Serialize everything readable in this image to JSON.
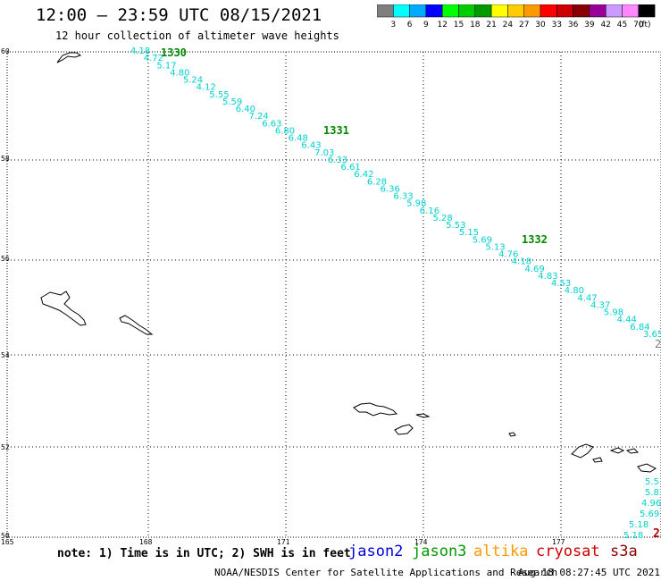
{
  "header": {
    "title": "12:00 – 23:59 UTC 08/15/2021",
    "subtitle": "12 hour collection of altimeter wave heights"
  },
  "colorbar": {
    "labels": [
      "3",
      "6",
      "9",
      "12",
      "15",
      "18",
      "21",
      "24",
      "27",
      "30",
      "33",
      "36",
      "39",
      "42",
      "45",
      "70"
    ],
    "unit": "(ft)",
    "colors": [
      "#7f7f7f",
      "#00ffff",
      "#00aaff",
      "#0000ff",
      "#00ff00",
      "#00cc00",
      "#009900",
      "#ffff00",
      "#ffcc00",
      "#ff9900",
      "#ff0000",
      "#cc0000",
      "#880000",
      "#990099",
      "#cc99ff",
      "#ff88ff",
      "#000000"
    ]
  },
  "axes": {
    "lat_labels": [
      "60",
      "58",
      "56",
      "54",
      "52",
      "50"
    ],
    "lon_labels": [
      "165",
      "168",
      "171",
      "174",
      "177"
    ]
  },
  "tracks": {
    "color": "#00d0d0",
    "orbit_color": "#008800",
    "orbit_labels": [
      "1330",
      "1331",
      "1332"
    ],
    "values": [
      "4.18",
      "4.72",
      "5.17",
      "4.80",
      "5.24",
      "4.12",
      "5.55",
      "5.59",
      "6.40",
      "7.24",
      "6.63",
      "6.80",
      "6.48",
      "6.43",
      "7.03",
      "6.33",
      "6.61",
      "6.42",
      "6.28",
      "6.36",
      "6.33",
      "5.98",
      "6.16",
      "5.28",
      "5.53",
      "5.15",
      "5.69",
      "5.13",
      "4.76",
      "4.18",
      "4.69",
      "4.83",
      "4.53",
      "4.80",
      "4.47",
      "4.37",
      "5.98",
      "4.44",
      "6.84",
      "3.65"
    ],
    "edge_label_gray": "2",
    "second_values": [
      "5.5",
      "5.83",
      "4.96",
      "5.69",
      "5.18",
      "5.18"
    ],
    "edge_label_red": "2"
  },
  "footer": {
    "note": "note: 1) Time is in UTC; 2) SWH is in feet",
    "satellites": [
      {
        "name": "jason2",
        "color": "#0000dd"
      },
      {
        "name": "jason3",
        "color": "#009900"
      },
      {
        "name": "altika",
        "color": "#ff9900"
      },
      {
        "name": "cryosat",
        "color": "#cc0000"
      },
      {
        "name": "s3a",
        "color": "#880000"
      }
    ],
    "credit": "NOAA/NESDIS Center for Satellite Applications and Research",
    "timestamp": "Aug 18 08:27:45 UTC 2021"
  }
}
